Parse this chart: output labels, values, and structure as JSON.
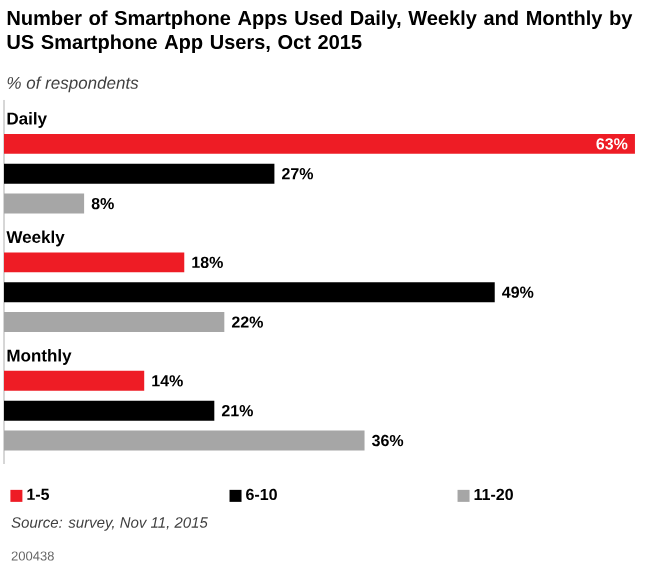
{
  "chart_data": {
    "type": "bar",
    "orientation": "horizontal",
    "title": "Number of Smartphone Apps Used Daily, Weekly and Monthly by US Smartphone App Users, Oct 2015",
    "subtitle": "% of respondents",
    "categories": [
      "Daily",
      "Weekly",
      "Monthly"
    ],
    "series": [
      {
        "name": "1-5",
        "color": "#ee1c25",
        "values": [
          63,
          18,
          14
        ],
        "value_labels": [
          "63%",
          "18%",
          "14%"
        ]
      },
      {
        "name": "6-10",
        "color": "#000000",
        "values": [
          27,
          49,
          21
        ],
        "value_labels": [
          "27%",
          "49%",
          "21%"
        ]
      },
      {
        "name": "11-20",
        "color": "#a6a6a6",
        "values": [
          8,
          22,
          36
        ],
        "value_labels": [
          "8%",
          "22%",
          "36%"
        ]
      }
    ],
    "legend": "bottom",
    "annotations": [
      "Source: survey, Nov 11, 2015",
      "200438"
    ]
  }
}
